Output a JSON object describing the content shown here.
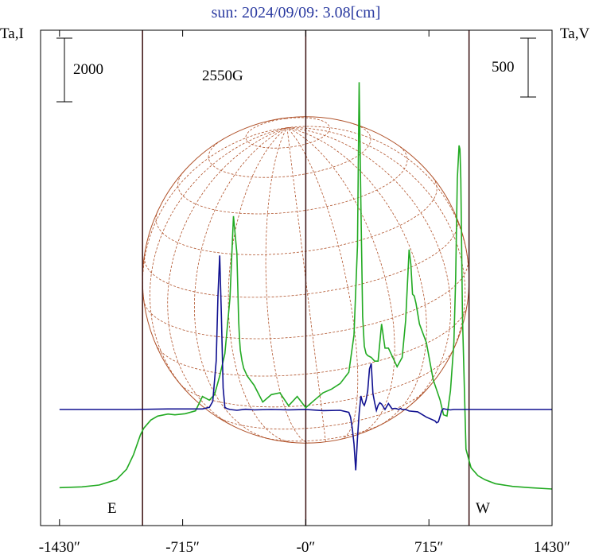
{
  "chart_data": {
    "type": "line",
    "title": "sun: 2024/09/09: 3.08[cm]",
    "left_axis_label": "Ta,I",
    "right_axis_label": "Ta,V",
    "left_scale_bar": "2000",
    "right_scale_bar": "500",
    "annotation": "2550G",
    "east_label": "E",
    "west_label": "W",
    "xlim": [
      -1540,
      1430
    ],
    "x_ticks": [
      {
        "value": -1430,
        "label": "-1430″"
      },
      {
        "value": -715,
        "label": "-715″"
      },
      {
        "value": 0,
        "label": "-0″"
      },
      {
        "value": 715,
        "label": "715″"
      },
      {
        "value": 1430,
        "label": "1430″"
      }
    ],
    "limb_positions": [
      -948,
      0,
      948
    ],
    "series": [
      {
        "name": "",
        "color": "#22aa22",
        "x": [
          -1430,
          -1300,
          -1200,
          -1100,
          -1040,
          -1000,
          -960,
          -940,
          -900,
          -860,
          -800,
          -760,
          -700,
          -640,
          -600,
          -560,
          -530,
          -500,
          -470,
          -440,
          -420,
          -400,
          -390,
          -385,
          -380,
          -370,
          -360,
          -340,
          -300,
          -250,
          -200,
          -150,
          -100,
          -50,
          0,
          50,
          100,
          150,
          200,
          250,
          280,
          300,
          310,
          320,
          330,
          340,
          350,
          360,
          380,
          400,
          420,
          440,
          460,
          480,
          500,
          530,
          560,
          580,
          600,
          610,
          620,
          630,
          640,
          660,
          700,
          740,
          780,
          800,
          820,
          840,
          860,
          870,
          880,
          890,
          895,
          900,
          910,
          930,
          960,
          1000,
          1040,
          1100,
          1200,
          1300,
          1430
        ],
        "y": [
          -2950,
          -2920,
          -2850,
          -2650,
          -2250,
          -1700,
          -950,
          -700,
          -400,
          -250,
          -170,
          -200,
          -160,
          -50,
          350,
          250,
          400,
          900,
          1500,
          3000,
          5200,
          4200,
          2400,
          1900,
          1600,
          1300,
          1100,
          900,
          650,
          200,
          400,
          450,
          100,
          350,
          50,
          250,
          450,
          550,
          700,
          1000,
          2000,
          4400,
          8800,
          5500,
          2500,
          1700,
          1500,
          1450,
          1400,
          1300,
          1300,
          2300,
          1650,
          1650,
          1450,
          1150,
          1400,
          2400,
          4300,
          3900,
          3100,
          3050,
          2850,
          2300,
          1800,
          800,
          250,
          -200,
          -250,
          500,
          1800,
          3500,
          6200,
          7100,
          7000,
          6200,
          2500,
          -1500,
          -2200,
          -2500,
          -2650,
          -2800,
          -2900,
          -2950,
          -3000
        ]
      },
      {
        "name": "",
        "color": "#101090",
        "x": [
          -1430,
          -1000,
          -800,
          -600,
          -560,
          -540,
          -520,
          -510,
          -500,
          -490,
          -480,
          -470,
          -460,
          -440,
          -400,
          -350,
          -300,
          -200,
          -100,
          0,
          100,
          200,
          250,
          260,
          270,
          280,
          290,
          300,
          310,
          320,
          330,
          340,
          350,
          360,
          370,
          380,
          390,
          400,
          410,
          420,
          430,
          440,
          460,
          480,
          500,
          520,
          530,
          540,
          550,
          560,
          580,
          600,
          650,
          700,
          750,
          760,
          770,
          780,
          790,
          800,
          820,
          840,
          860,
          900,
          1000,
          1430
        ],
        "y": [
          0,
          0,
          20,
          20,
          80,
          300,
          1800,
          4200,
          5700,
          3500,
          800,
          80,
          40,
          0,
          -40,
          10,
          -20,
          0,
          -20,
          0,
          -60,
          -40,
          -150,
          -400,
          -1000,
          -1800,
          -3200,
          -1500,
          -200,
          500,
          250,
          150,
          350,
          700,
          1500,
          1700,
          600,
          250,
          -50,
          150,
          250,
          200,
          0,
          220,
          30,
          40,
          20,
          0,
          40,
          -10,
          0,
          -80,
          -120,
          -400,
          -600,
          -700,
          -650,
          -350,
          -60,
          30,
          0,
          -20,
          0,
          0,
          0,
          0
        ]
      }
    ],
    "i_scale": [
      -3300,
      9300
    ],
    "v_scale": [
      -4600,
      12800
    ]
  }
}
